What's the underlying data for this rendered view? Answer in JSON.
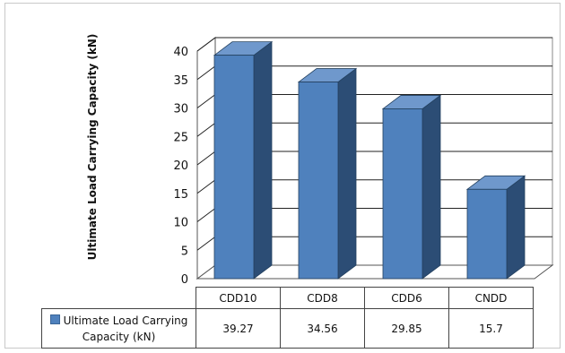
{
  "chart_data": {
    "type": "bar",
    "ylabel": "Ultimate Load Carrying Capacity  (kN)",
    "categories": [
      "CDD10",
      "CDD8",
      "CDD6",
      "CNDD"
    ],
    "series": [
      {
        "name": "Ultimate Load Carrying Capacity (kN)",
        "values": [
          39.27,
          34.56,
          29.85,
          15.7
        ]
      }
    ],
    "value_labels": [
      "39.27",
      "34.56",
      "29.85",
      "15.7"
    ],
    "ylim": [
      0,
      40
    ],
    "yticks": [
      "0",
      "5",
      "10",
      "15",
      "20",
      "25",
      "30",
      "35",
      "40"
    ],
    "grid": true,
    "legend": "data-table",
    "colors": {
      "bar_front": "#4f81bd",
      "bar_side": "#2c4d75",
      "bar_top": "#6f98cc"
    }
  }
}
